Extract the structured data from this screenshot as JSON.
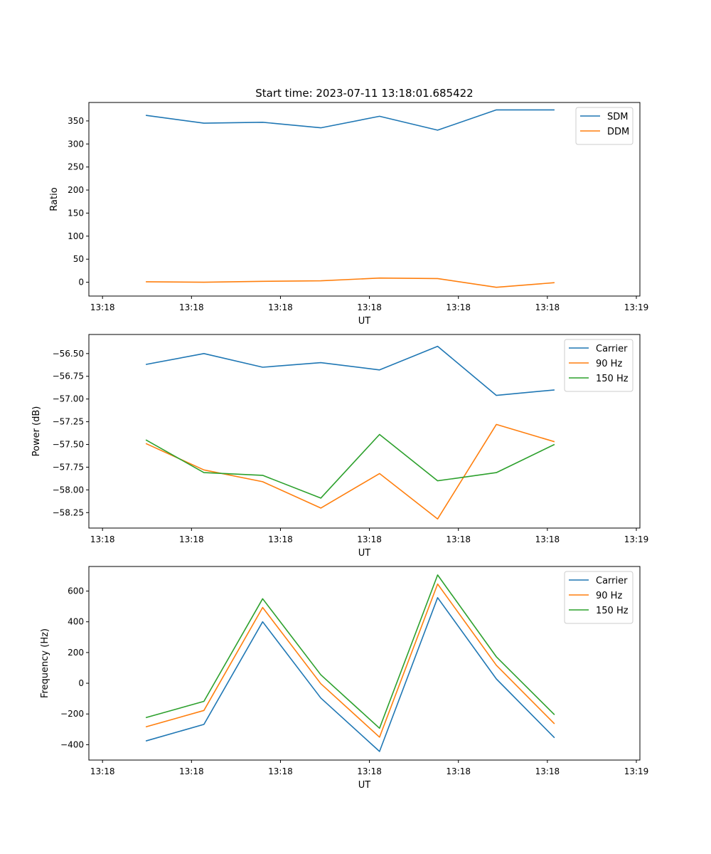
{
  "chart_data": [
    {
      "type": "line",
      "title": "Start time: 2023-07-11 13:18:01.685422",
      "xlabel": "UT",
      "ylabel": "Ratio",
      "xlim": [
        -0.23,
        9.06
      ],
      "ylim": [
        -30,
        390
      ],
      "xticks": [
        {
          "value": 0,
          "label": "13:18"
        },
        {
          "value": 1.5,
          "label": "13:18"
        },
        {
          "value": 3,
          "label": "13:18"
        },
        {
          "value": 4.5,
          "label": "13:18"
        },
        {
          "value": 6,
          "label": "13:18"
        },
        {
          "value": 7.5,
          "label": "13:18"
        },
        {
          "value": 9,
          "label": "13:19"
        }
      ],
      "yticks": [
        {
          "value": 0,
          "label": "0"
        },
        {
          "value": 50,
          "label": "50"
        },
        {
          "value": 100,
          "label": "100"
        },
        {
          "value": 150,
          "label": "150"
        },
        {
          "value": 200,
          "label": "200"
        },
        {
          "value": 250,
          "label": "250"
        },
        {
          "value": 300,
          "label": "300"
        },
        {
          "value": 350,
          "label": "350"
        }
      ],
      "legend": "top-right",
      "x": [
        0.73,
        1.71,
        2.7,
        3.68,
        4.67,
        5.65,
        6.64,
        7.62
      ],
      "series": [
        {
          "name": "SDM",
          "color": "#1f77b4",
          "values": [
            362,
            345,
            347,
            335,
            360,
            330,
            374,
            374
          ]
        },
        {
          "name": "DDM",
          "color": "#ff7f0e",
          "values": [
            1,
            0,
            2,
            3,
            9,
            8,
            -11,
            -1
          ]
        }
      ]
    },
    {
      "type": "line",
      "title": "",
      "xlabel": "UT",
      "ylabel": "Power (dB)",
      "xlim": [
        -0.23,
        9.06
      ],
      "ylim": [
        -58.42,
        -56.29
      ],
      "xticks": [
        {
          "value": 0,
          "label": "13:18"
        },
        {
          "value": 1.5,
          "label": "13:18"
        },
        {
          "value": 3,
          "label": "13:18"
        },
        {
          "value": 4.5,
          "label": "13:18"
        },
        {
          "value": 6,
          "label": "13:18"
        },
        {
          "value": 7.5,
          "label": "13:18"
        },
        {
          "value": 9,
          "label": "13:19"
        }
      ],
      "yticks": [
        {
          "value": -56.5,
          "label": "−56.50"
        },
        {
          "value": -56.75,
          "label": "−56.75"
        },
        {
          "value": -57.0,
          "label": "−57.00"
        },
        {
          "value": -57.25,
          "label": "−57.25"
        },
        {
          "value": -57.5,
          "label": "−57.50"
        },
        {
          "value": -57.75,
          "label": "−57.75"
        },
        {
          "value": -58.0,
          "label": "−58.00"
        },
        {
          "value": -58.25,
          "label": "−58.25"
        }
      ],
      "legend": "top-right",
      "x": [
        0.73,
        1.71,
        2.7,
        3.68,
        4.67,
        5.65,
        6.64,
        7.62
      ],
      "series": [
        {
          "name": "Carrier",
          "color": "#1f77b4",
          "values": [
            -56.62,
            -56.5,
            -56.65,
            -56.6,
            -56.68,
            -56.42,
            -56.96,
            -56.9
          ]
        },
        {
          "name": "90 Hz",
          "color": "#ff7f0e",
          "values": [
            -57.49,
            -57.78,
            -57.91,
            -58.2,
            -57.82,
            -58.32,
            -57.28,
            -57.47
          ]
        },
        {
          "name": "150 Hz",
          "color": "#2ca02c",
          "values": [
            -57.45,
            -57.81,
            -57.84,
            -58.09,
            -57.39,
            -57.9,
            -57.81,
            -57.5
          ]
        }
      ]
    },
    {
      "type": "line",
      "title": "",
      "xlabel": "UT",
      "ylabel": "Frequency (Hz)",
      "xlim": [
        -0.23,
        9.06
      ],
      "ylim": [
        -500,
        760
      ],
      "xticks": [
        {
          "value": 0,
          "label": "13:18"
        },
        {
          "value": 1.5,
          "label": "13:18"
        },
        {
          "value": 3,
          "label": "13:18"
        },
        {
          "value": 4.5,
          "label": "13:18"
        },
        {
          "value": 6,
          "label": "13:18"
        },
        {
          "value": 7.5,
          "label": "13:18"
        },
        {
          "value": 9,
          "label": "13:19"
        }
      ],
      "yticks": [
        {
          "value": -400,
          "label": "−400"
        },
        {
          "value": -200,
          "label": "−200"
        },
        {
          "value": 0,
          "label": "0"
        },
        {
          "value": 200,
          "label": "200"
        },
        {
          "value": 400,
          "label": "400"
        },
        {
          "value": 600,
          "label": "600"
        }
      ],
      "legend": "top-right",
      "x": [
        0.73,
        1.71,
        2.7,
        3.68,
        4.67,
        5.65,
        6.64,
        7.62
      ],
      "series": [
        {
          "name": "Carrier",
          "color": "#1f77b4",
          "values": [
            -376,
            -268,
            400,
            -96,
            -444,
            557,
            28,
            -355
          ]
        },
        {
          "name": "90 Hz",
          "color": "#ff7f0e",
          "values": [
            -284,
            -177,
            493,
            -3,
            -351,
            646,
            117,
            -264
          ]
        },
        {
          "name": "150 Hz",
          "color": "#2ca02c",
          "values": [
            -224,
            -118,
            550,
            55,
            -293,
            705,
            172,
            -205
          ]
        }
      ]
    }
  ]
}
